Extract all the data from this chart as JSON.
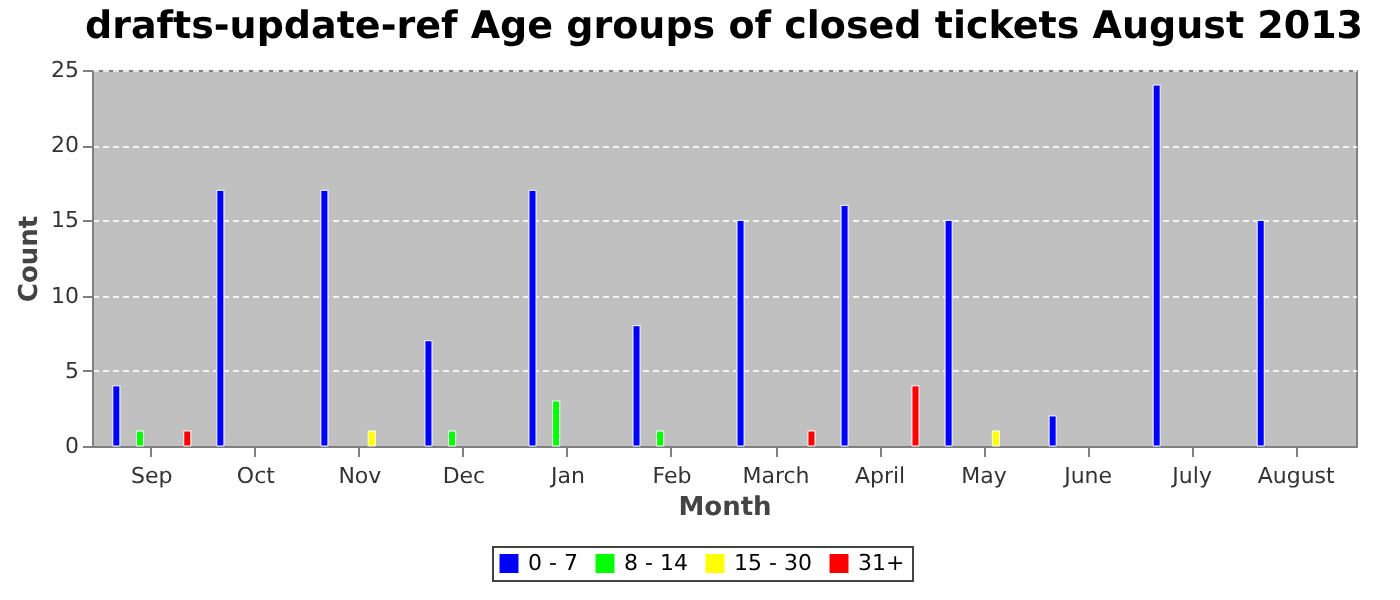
{
  "chart_data": {
    "type": "bar",
    "title": "drafts-update-ref Age groups of closed tickets August 2013",
    "xlabel": "Month",
    "ylabel": "Count",
    "categories": [
      "Sep",
      "Oct",
      "Nov",
      "Dec",
      "Jan",
      "Feb",
      "March",
      "April",
      "May",
      "June",
      "July",
      "August"
    ],
    "series": [
      {
        "name": "0 - 7",
        "color": "#0000ff",
        "values": [
          4,
          17,
          17,
          7,
          17,
          8,
          15,
          16,
          15,
          2,
          24,
          15
        ]
      },
      {
        "name": "8 - 14",
        "color": "#00ff00",
        "values": [
          1,
          null,
          null,
          1,
          3,
          1,
          null,
          null,
          null,
          null,
          null,
          null
        ]
      },
      {
        "name": "15 - 30",
        "color": "#ffff00",
        "values": [
          null,
          null,
          1,
          null,
          null,
          null,
          null,
          null,
          1,
          null,
          null,
          null
        ]
      },
      {
        "name": "31+",
        "color": "#ff0000",
        "values": [
          1,
          null,
          null,
          null,
          null,
          null,
          1,
          4,
          null,
          null,
          null,
          null
        ]
      }
    ],
    "ylim": [
      0,
      25
    ],
    "yticks": [
      0,
      5,
      10,
      15,
      20,
      25
    ],
    "grid": "y",
    "legend": "bottom"
  }
}
